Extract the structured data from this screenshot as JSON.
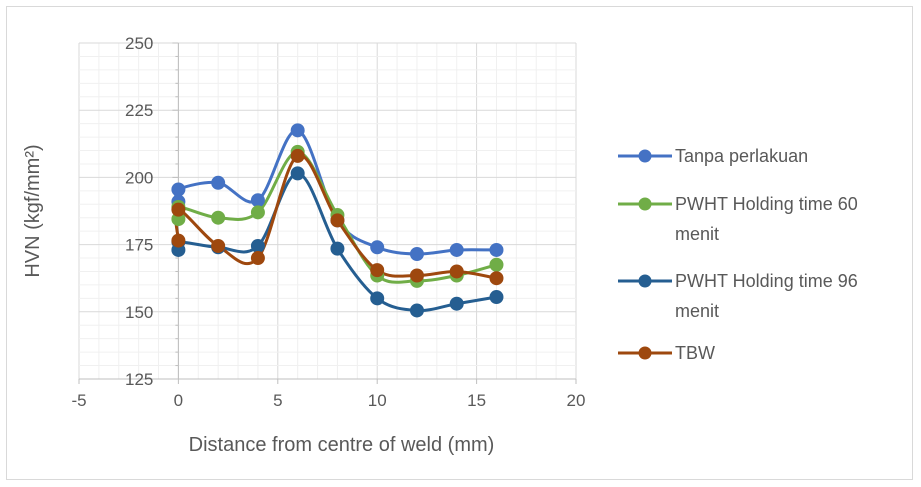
{
  "chart_data": {
    "type": "line",
    "smooth": true,
    "title": "",
    "xlabel": "Distance from centre of weld (mm)",
    "ylabel": "HVN (kgf/mm²)",
    "xlim": [
      -5,
      20
    ],
    "ylim": [
      125,
      250
    ],
    "x_ticks": [
      -5,
      0,
      5,
      10,
      15,
      20
    ],
    "y_ticks": [
      125,
      150,
      175,
      200,
      225,
      250
    ],
    "x_tick_labels": [
      "-5",
      "0",
      "5",
      "10",
      "15",
      "20"
    ],
    "y_tick_labels": [
      "125",
      "150",
      "175",
      "200",
      "225",
      "250"
    ],
    "grid": "major and minor",
    "legend_position": "right",
    "series": [
      {
        "name": "Tanpa perlakuan",
        "legend_lines": [
          "Tanpa perlakuan"
        ],
        "color": "#4472C4",
        "points": [
          [
            0,
            191
          ],
          [
            0,
            195.5
          ],
          [
            2,
            198
          ],
          [
            4,
            191.5
          ],
          [
            6,
            217.5
          ],
          [
            8,
            184
          ],
          [
            10,
            174
          ],
          [
            12,
            171.5
          ],
          [
            14,
            173
          ],
          [
            16,
            173
          ]
        ]
      },
      {
        "name": "PWHT Holding time 60 menit",
        "legend_lines": [
          "PWHT Holding time 60",
          "menit"
        ],
        "color": "#70AD47",
        "points": [
          [
            0,
            184.5
          ],
          [
            0,
            189
          ],
          [
            2,
            185
          ],
          [
            4,
            187
          ],
          [
            6,
            209.5
          ],
          [
            8,
            186
          ],
          [
            10,
            163.5
          ],
          [
            12,
            161.5
          ],
          [
            14,
            163.5
          ],
          [
            16,
            167.5
          ]
        ]
      },
      {
        "name": "PWHT Holding time 96 menit",
        "legend_lines": [
          "PWHT Holding time 96",
          "menit"
        ],
        "color": "#255E91",
        "points": [
          [
            0,
            173
          ],
          [
            0,
            176
          ],
          [
            2,
            174
          ],
          [
            4,
            174.5
          ],
          [
            6,
            201.5
          ],
          [
            8,
            173.5
          ],
          [
            10,
            155
          ],
          [
            12,
            150.5
          ],
          [
            14,
            153
          ],
          [
            16,
            155.5
          ]
        ]
      },
      {
        "name": "TBW",
        "legend_lines": [
          "TBW"
        ],
        "color": "#9E480E",
        "points": [
          [
            0,
            176.5
          ],
          [
            0,
            188
          ],
          [
            2,
            174.5
          ],
          [
            4,
            170
          ],
          [
            6,
            208
          ],
          [
            8,
            184
          ],
          [
            10,
            165.5
          ],
          [
            12,
            163.5
          ],
          [
            14,
            165
          ],
          [
            16,
            162.5
          ]
        ]
      }
    ]
  }
}
